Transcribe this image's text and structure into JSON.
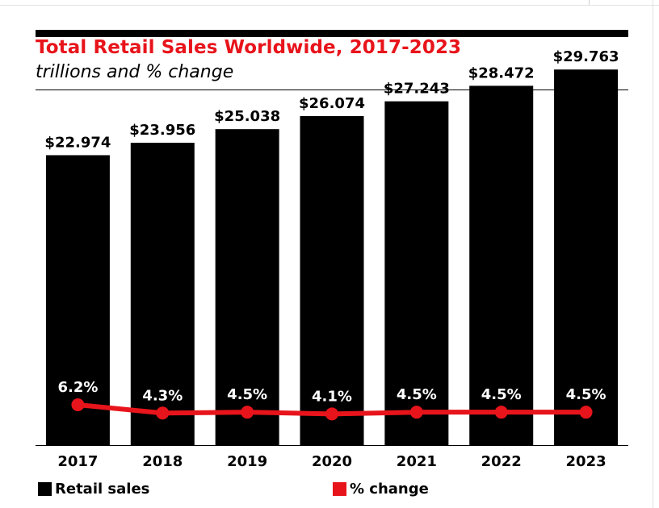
{
  "title": "Total Retail Sales Worldwide, 2017-2023",
  "subtitle": "trillions and % change",
  "colors": {
    "bar": "#000000",
    "line": "#e8141b",
    "title": "#e8141b"
  },
  "legend": {
    "sales_label": "Retail sales",
    "change_label": "% change"
  },
  "chart_data": {
    "type": "bar",
    "title": "Total Retail Sales Worldwide, 2017-2023",
    "subtitle": "trillions and % change",
    "categories": [
      "2017",
      "2018",
      "2019",
      "2020",
      "2021",
      "2022",
      "2023"
    ],
    "series": [
      {
        "name": "Retail sales",
        "type": "bar",
        "values": [
          22.974,
          23.956,
          25.038,
          26.074,
          27.243,
          28.472,
          29.763
        ],
        "labels": [
          "$22.974",
          "$23.956",
          "$25.038",
          "$26.074",
          "$27.243",
          "$28.472",
          "$29.763"
        ]
      },
      {
        "name": "% change",
        "type": "line",
        "values": [
          6.2,
          4.3,
          4.5,
          4.1,
          4.5,
          4.5,
          4.5
        ],
        "labels": [
          "6.2%",
          "4.3%",
          "4.5%",
          "4.1%",
          "4.5%",
          "4.5%",
          "4.5%"
        ]
      }
    ],
    "legend_position": "bottom",
    "grid": false
  }
}
